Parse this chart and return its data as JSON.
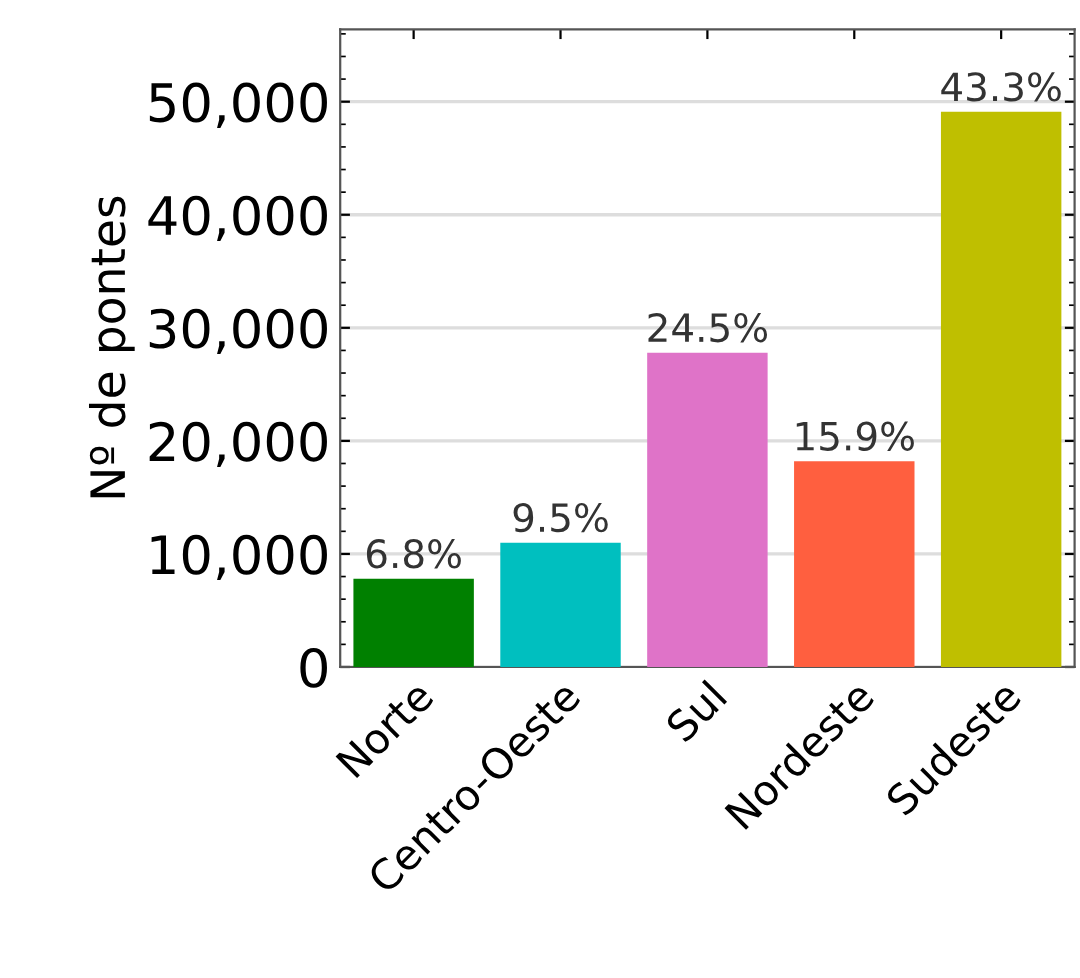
{
  "chart_data": {
    "type": "bar",
    "ylabel": "Nº de pontes",
    "categories": [
      "Norte",
      "Centro-Oeste",
      "Sul",
      "Nordeste",
      "Sudeste"
    ],
    "values": [
      7800,
      11000,
      27800,
      18200,
      49100
    ],
    "colors": [
      "#008000",
      "#00bfbf",
      "#df73c8",
      "#ff5f3f",
      "#bfbf00"
    ],
    "annotations": [
      {
        "text": "6.8%",
        "x": "Norte",
        "y": 7800
      },
      {
        "text": "9.5%",
        "x": "Centro-Oeste",
        "y": 11000
      },
      {
        "text": "24.5%",
        "x": "Sul",
        "y": 27800
      },
      {
        "text": "15.9%",
        "x": "Nordeste",
        "y": 18200
      },
      {
        "text": "43.3%",
        "x": "Sudeste",
        "y": 49100
      }
    ],
    "ylim": [
      0,
      56400
    ],
    "yticks": [
      {
        "value": 0,
        "label": "0"
      },
      {
        "value": 10000,
        "label": "10,000"
      },
      {
        "value": 20000,
        "label": "20,000"
      },
      {
        "value": 30000,
        "label": "30,000"
      },
      {
        "value": 40000,
        "label": "40,000"
      },
      {
        "value": 50000,
        "label": "50,000"
      }
    ],
    "grid": "y"
  }
}
